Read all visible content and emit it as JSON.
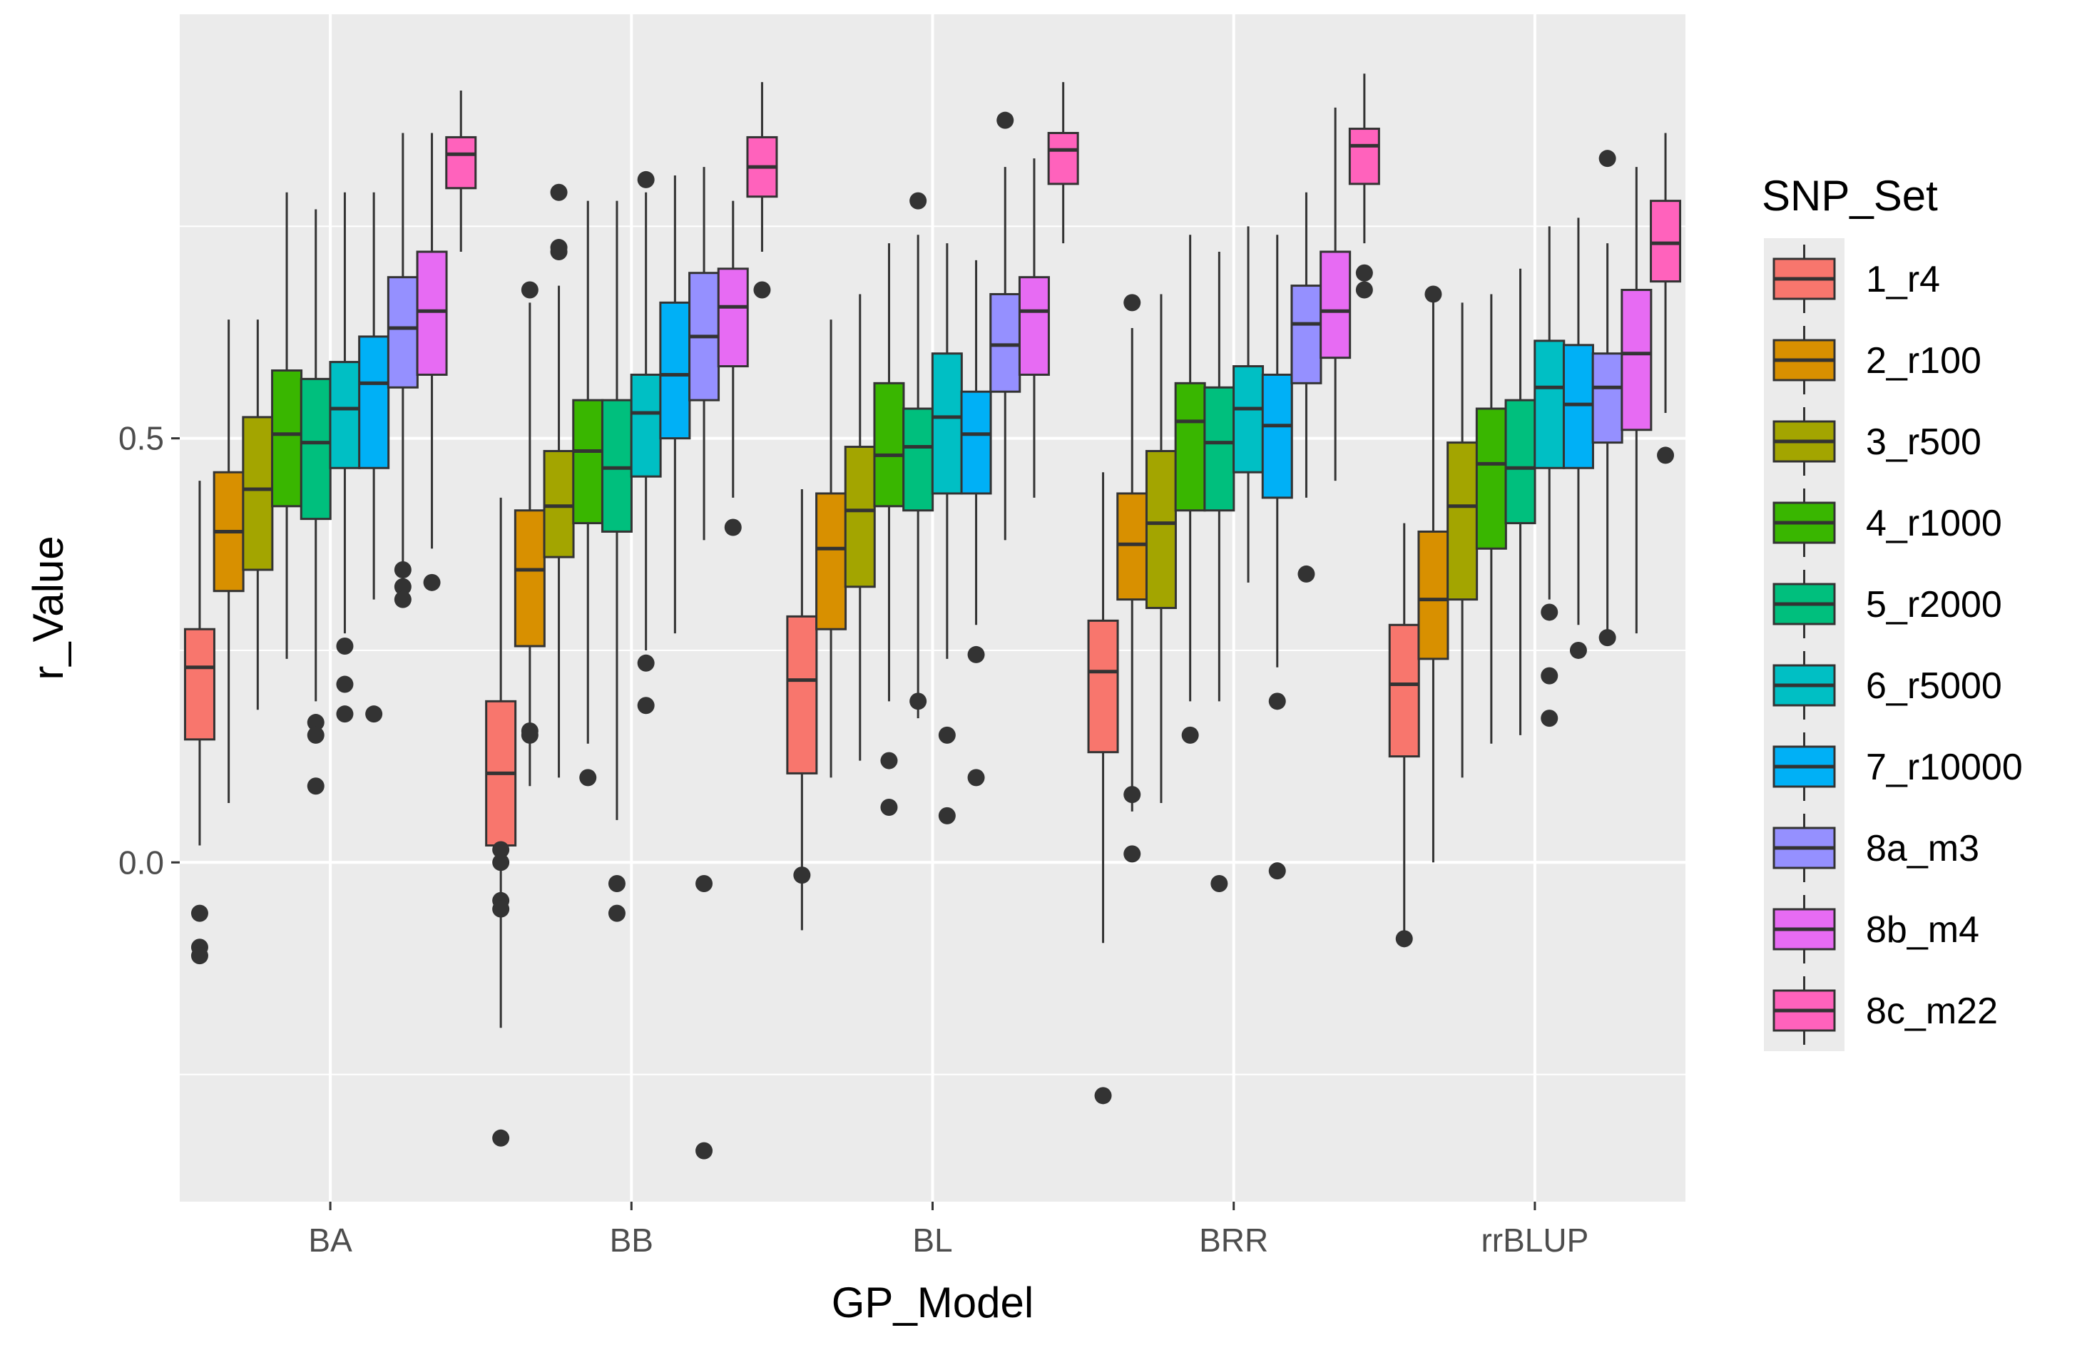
{
  "chart_data": {
    "type": "boxplot",
    "xlabel": "GP_Model",
    "ylabel": "r_Value",
    "ylim": [
      -0.4,
      1.0
    ],
    "yticks": [
      0.0,
      0.5
    ],
    "ytick_labels": [
      "0.0",
      "0.5"
    ],
    "categories": [
      "BA",
      "BB",
      "BL",
      "BRR",
      "rrBLUP"
    ],
    "legend": {
      "title": "SNP_Set",
      "position": "right"
    },
    "series": [
      {
        "name": "1_r4",
        "color": "#F8766D"
      },
      {
        "name": "2_r100",
        "color": "#D89000"
      },
      {
        "name": "3_r500",
        "color": "#A3A500"
      },
      {
        "name": "4_r1000",
        "color": "#39B600"
      },
      {
        "name": "5_r2000",
        "color": "#00BF7D"
      },
      {
        "name": "6_r5000",
        "color": "#00BFC4"
      },
      {
        "name": "7_r10000",
        "color": "#00B0F6"
      },
      {
        "name": "8a_m3",
        "color": "#9590FF"
      },
      {
        "name": "8b_m4",
        "color": "#E76BF3"
      },
      {
        "name": "8c_m22",
        "color": "#FF62BC"
      }
    ],
    "boxes": [
      [
        {
          "q1": 0.145,
          "median": 0.23,
          "q3": 0.275,
          "lw": 0.02,
          "uw": 0.45,
          "out": [
            -0.06,
            -0.1,
            -0.11
          ]
        },
        {
          "q1": 0.32,
          "median": 0.39,
          "q3": 0.46,
          "lw": 0.07,
          "uw": 0.64,
          "out": []
        },
        {
          "q1": 0.345,
          "median": 0.44,
          "q3": 0.525,
          "lw": 0.18,
          "uw": 0.64,
          "out": []
        },
        {
          "q1": 0.42,
          "median": 0.505,
          "q3": 0.58,
          "lw": 0.24,
          "uw": 0.79,
          "out": []
        },
        {
          "q1": 0.405,
          "median": 0.495,
          "q3": 0.57,
          "lw": 0.19,
          "uw": 0.77,
          "out": [
            0.165,
            0.15,
            0.09
          ]
        },
        {
          "q1": 0.465,
          "median": 0.535,
          "q3": 0.59,
          "lw": 0.27,
          "uw": 0.79,
          "out": [
            0.255,
            0.21,
            0.175
          ]
        },
        {
          "q1": 0.465,
          "median": 0.565,
          "q3": 0.62,
          "lw": 0.31,
          "uw": 0.79,
          "out": [
            0.175
          ]
        },
        {
          "q1": 0.56,
          "median": 0.63,
          "q3": 0.69,
          "lw": 0.33,
          "uw": 0.86,
          "out": [
            0.345,
            0.325,
            0.31
          ]
        },
        {
          "q1": 0.575,
          "median": 0.65,
          "q3": 0.72,
          "lw": 0.37,
          "uw": 0.86,
          "out": [
            0.33
          ]
        },
        {
          "q1": 0.795,
          "median": 0.835,
          "q3": 0.855,
          "lw": 0.72,
          "uw": 0.91,
          "out": []
        }
      ],
      [
        {
          "q1": 0.02,
          "median": 0.105,
          "q3": 0.19,
          "lw": -0.195,
          "uw": 0.43,
          "out": [
            -0.325,
            0.015,
            0.0,
            -0.045,
            -0.055
          ]
        },
        {
          "q1": 0.255,
          "median": 0.345,
          "q3": 0.415,
          "lw": 0.09,
          "uw": 0.66,
          "out": [
            0.675,
            0.155,
            0.15
          ]
        },
        {
          "q1": 0.36,
          "median": 0.42,
          "q3": 0.485,
          "lw": 0.1,
          "uw": 0.68,
          "out": [
            0.79,
            0.72,
            0.725
          ]
        },
        {
          "q1": 0.4,
          "median": 0.485,
          "q3": 0.545,
          "lw": 0.14,
          "uw": 0.78,
          "out": [
            0.1
          ]
        },
        {
          "q1": 0.39,
          "median": 0.465,
          "q3": 0.545,
          "lw": 0.05,
          "uw": 0.78,
          "out": [
            -0.025,
            -0.06
          ]
        },
        {
          "q1": 0.455,
          "median": 0.53,
          "q3": 0.575,
          "lw": 0.25,
          "uw": 0.79,
          "out": [
            0.805,
            0.235,
            0.185
          ]
        },
        {
          "q1": 0.5,
          "median": 0.575,
          "q3": 0.66,
          "lw": 0.27,
          "uw": 0.81,
          "out": []
        },
        {
          "q1": 0.545,
          "median": 0.62,
          "q3": 0.695,
          "lw": 0.38,
          "uw": 0.82,
          "out": [
            -0.025,
            -0.34
          ]
        },
        {
          "q1": 0.585,
          "median": 0.655,
          "q3": 0.7,
          "lw": 0.43,
          "uw": 0.78,
          "out": [
            0.395
          ]
        },
        {
          "q1": 0.785,
          "median": 0.82,
          "q3": 0.855,
          "lw": 0.72,
          "uw": 0.92,
          "out": [
            0.675
          ]
        }
      ],
      [
        {
          "q1": 0.105,
          "median": 0.215,
          "q3": 0.29,
          "lw": -0.08,
          "uw": 0.44,
          "out": [
            -0.015
          ]
        },
        {
          "q1": 0.275,
          "median": 0.37,
          "q3": 0.435,
          "lw": 0.1,
          "uw": 0.64,
          "out": []
        },
        {
          "q1": 0.325,
          "median": 0.415,
          "q3": 0.49,
          "lw": 0.12,
          "uw": 0.67,
          "out": []
        },
        {
          "q1": 0.42,
          "median": 0.48,
          "q3": 0.565,
          "lw": 0.19,
          "uw": 0.73,
          "out": [
            0.12,
            0.065
          ]
        },
        {
          "q1": 0.415,
          "median": 0.49,
          "q3": 0.535,
          "lw": 0.17,
          "uw": 0.74,
          "out": [
            0.78,
            0.19
          ]
        },
        {
          "q1": 0.435,
          "median": 0.525,
          "q3": 0.6,
          "lw": 0.24,
          "uw": 0.73,
          "out": [
            0.15,
            0.055
          ]
        },
        {
          "q1": 0.435,
          "median": 0.505,
          "q3": 0.555,
          "lw": 0.28,
          "uw": 0.71,
          "out": [
            0.245,
            0.1
          ]
        },
        {
          "q1": 0.555,
          "median": 0.61,
          "q3": 0.67,
          "lw": 0.38,
          "uw": 0.82,
          "out": [
            0.875
          ]
        },
        {
          "q1": 0.575,
          "median": 0.65,
          "q3": 0.69,
          "lw": 0.43,
          "uw": 0.83,
          "out": []
        },
        {
          "q1": 0.8,
          "median": 0.84,
          "q3": 0.86,
          "lw": 0.73,
          "uw": 0.92,
          "out": []
        }
      ],
      [
        {
          "q1": 0.13,
          "median": 0.225,
          "q3": 0.285,
          "lw": -0.095,
          "uw": 0.46,
          "out": [
            -0.275
          ]
        },
        {
          "q1": 0.31,
          "median": 0.375,
          "q3": 0.435,
          "lw": 0.06,
          "uw": 0.63,
          "out": [
            0.66,
            0.08,
            0.01
          ]
        },
        {
          "q1": 0.3,
          "median": 0.4,
          "q3": 0.485,
          "lw": 0.07,
          "uw": 0.67,
          "out": []
        },
        {
          "q1": 0.415,
          "median": 0.52,
          "q3": 0.565,
          "lw": 0.19,
          "uw": 0.74,
          "out": [
            0.15
          ]
        },
        {
          "q1": 0.415,
          "median": 0.495,
          "q3": 0.56,
          "lw": 0.19,
          "uw": 0.72,
          "out": [
            -0.025
          ]
        },
        {
          "q1": 0.46,
          "median": 0.535,
          "q3": 0.585,
          "lw": 0.33,
          "uw": 0.75,
          "out": []
        },
        {
          "q1": 0.43,
          "median": 0.515,
          "q3": 0.575,
          "lw": 0.23,
          "uw": 0.74,
          "out": [
            0.19,
            -0.01
          ]
        },
        {
          "q1": 0.565,
          "median": 0.635,
          "q3": 0.68,
          "lw": 0.43,
          "uw": 0.79,
          "out": [
            0.34
          ]
        },
        {
          "q1": 0.595,
          "median": 0.65,
          "q3": 0.72,
          "lw": 0.45,
          "uw": 0.89,
          "out": []
        },
        {
          "q1": 0.8,
          "median": 0.845,
          "q3": 0.865,
          "lw": 0.73,
          "uw": 0.93,
          "out": [
            0.695,
            0.675
          ]
        }
      ],
      [
        {
          "q1": 0.125,
          "median": 0.21,
          "q3": 0.28,
          "lw": -0.085,
          "uw": 0.4,
          "out": [
            -0.09
          ]
        },
        {
          "q1": 0.24,
          "median": 0.31,
          "q3": 0.39,
          "lw": 0.0,
          "uw": 0.67,
          "out": [
            0.67
          ]
        },
        {
          "q1": 0.31,
          "median": 0.42,
          "q3": 0.495,
          "lw": 0.1,
          "uw": 0.66,
          "out": []
        },
        {
          "q1": 0.37,
          "median": 0.47,
          "q3": 0.535,
          "lw": 0.14,
          "uw": 0.67,
          "out": []
        },
        {
          "q1": 0.4,
          "median": 0.465,
          "q3": 0.545,
          "lw": 0.15,
          "uw": 0.7,
          "out": []
        },
        {
          "q1": 0.465,
          "median": 0.56,
          "q3": 0.615,
          "lw": 0.31,
          "uw": 0.75,
          "out": [
            0.295,
            0.22,
            0.17
          ]
        },
        {
          "q1": 0.465,
          "median": 0.54,
          "q3": 0.61,
          "lw": 0.28,
          "uw": 0.76,
          "out": [
            0.25
          ]
        },
        {
          "q1": 0.495,
          "median": 0.56,
          "q3": 0.6,
          "lw": 0.26,
          "uw": 0.73,
          "out": [
            0.265,
            0.83
          ]
        },
        {
          "q1": 0.51,
          "median": 0.6,
          "q3": 0.675,
          "lw": 0.27,
          "uw": 0.82,
          "out": []
        },
        {
          "q1": 0.685,
          "median": 0.73,
          "q3": 0.78,
          "lw": 0.53,
          "uw": 0.86,
          "out": [
            0.48
          ]
        }
      ]
    ]
  }
}
